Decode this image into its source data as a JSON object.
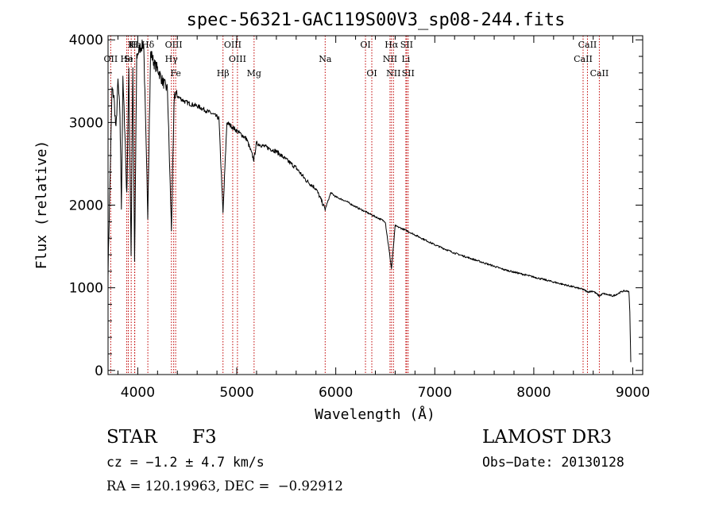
{
  "chart_data": {
    "type": "line",
    "title": "spec-56321-GAC119S00V3_sp08-244.fits",
    "xlabel": "Wavelength (Å)",
    "ylabel": "Flux (relative)",
    "xlim": [
      3700,
      9100
    ],
    "ylim": [
      -50,
      4050
    ],
    "xticks": [
      4000,
      5000,
      6000,
      7000,
      8000,
      9000
    ],
    "yticks": [
      0,
      1000,
      2000,
      3000,
      4000
    ],
    "x_minor_step": 200,
    "y_minor_step": 200,
    "series": [
      {
        "name": "spectrum",
        "x": [
          3700,
          3720,
          3740,
          3760,
          3780,
          3800,
          3820,
          3835,
          3850,
          3870,
          3889,
          3910,
          3933,
          3950,
          3968,
          3990,
          4020,
          4060,
          4101,
          4130,
          4170,
          4200,
          4250,
          4300,
          4340,
          4370,
          4420,
          4480,
          4540,
          4600,
          4680,
          4760,
          4820,
          4861,
          4900,
          4950,
          5000,
          5050,
          5100,
          5172,
          5200,
          5300,
          5400,
          5500,
          5600,
          5700,
          5800,
          5893,
          5950,
          6000,
          6100,
          6200,
          6300,
          6400,
          6500,
          6563,
          6600,
          6700,
          6800,
          6900,
          7000,
          7100,
          7200,
          7300,
          7400,
          7500,
          7600,
          7700,
          7800,
          7900,
          8000,
          8100,
          8200,
          8300,
          8400,
          8498,
          8542,
          8600,
          8662,
          8700,
          8800,
          8900,
          8960,
          8970,
          8980
        ],
        "y": [
          1200,
          2300,
          3400,
          3300,
          2900,
          3500,
          3100,
          2000,
          3500,
          2900,
          2100,
          3600,
          1400,
          3700,
          1300,
          3800,
          3900,
          3950,
          1900,
          3850,
          3700,
          3650,
          3500,
          3400,
          1700,
          3350,
          3300,
          3250,
          3220,
          3200,
          3150,
          3100,
          3050,
          1900,
          3000,
          2950,
          2900,
          2850,
          2800,
          2550,
          2750,
          2700,
          2650,
          2550,
          2450,
          2300,
          2200,
          1950,
          2150,
          2100,
          2050,
          1980,
          1920,
          1860,
          1800,
          1230,
          1750,
          1700,
          1640,
          1580,
          1520,
          1470,
          1420,
          1380,
          1340,
          1300,
          1260,
          1220,
          1190,
          1160,
          1130,
          1100,
          1070,
          1040,
          1010,
          980,
          950,
          960,
          900,
          930,
          900,
          960,
          960,
          700,
          100
        ]
      }
    ],
    "lines": [
      {
        "label": "Hδ",
        "wl": 4102,
        "row": 1
      },
      {
        "label": "K",
        "wl": 3934,
        "row": 1
      },
      {
        "label": "H",
        "wl": 3968,
        "row": 1
      },
      {
        "label": "Hε",
        "wl": 3970,
        "row": 1
      },
      {
        "label": "OII",
        "wl": 3727,
        "row": 2
      },
      {
        "label": "He",
        "wl": 3889,
        "row": 2
      },
      {
        "label": "Si",
        "wl": 3905,
        "row": 2
      },
      {
        "label": "OIII",
        "wl": 4363,
        "row": 1
      },
      {
        "label": "Hγ",
        "wl": 4340,
        "row": 2
      },
      {
        "label": "Fe",
        "wl": 4383,
        "row": 3
      },
      {
        "label": "OIII",
        "wl": 4959,
        "row": 1
      },
      {
        "label": "OIII",
        "wl": 5007,
        "row": 2
      },
      {
        "label": "Hβ",
        "wl": 4861,
        "row": 3
      },
      {
        "label": "Mg",
        "wl": 5175,
        "row": 3
      },
      {
        "label": "Na",
        "wl": 5893,
        "row": 2
      },
      {
        "label": "OI",
        "wl": 6300,
        "row": 1
      },
      {
        "label": "OI",
        "wl": 6364,
        "row": 3
      },
      {
        "label": "Hα",
        "wl": 6563,
        "row": 1
      },
      {
        "label": "SII",
        "wl": 6716,
        "row": 1
      },
      {
        "label": "NII",
        "wl": 6548,
        "row": 2
      },
      {
        "label": "Li",
        "wl": 6708,
        "row": 2
      },
      {
        "label": "NII",
        "wl": 6583,
        "row": 3
      },
      {
        "label": "SII",
        "wl": 6731,
        "row": 3
      },
      {
        "label": "CaII",
        "wl": 8542,
        "row": 1
      },
      {
        "label": "CaII",
        "wl": 8498,
        "row": 2
      },
      {
        "label": "CaII",
        "wl": 8662,
        "row": 3
      }
    ],
    "line_color": "#c00000",
    "series_color": "#000000"
  },
  "info": {
    "object_class": "STAR",
    "subclass": "F3",
    "survey": "LAMOST DR3",
    "cz": "cz = −1.2 ± 4.7 km/s",
    "obs_date": "Obs−Date: 20130128",
    "coords": "RA = 120.19963, DEC =  −0.92912"
  }
}
